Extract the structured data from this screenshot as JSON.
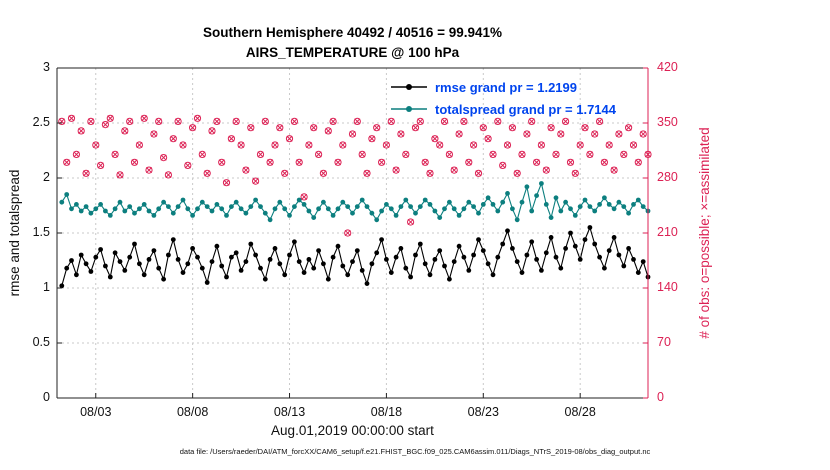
{
  "figure": {
    "title_line1": "Southern Hemisphere 40492 / 40516 = 99.941%",
    "title_line2": "AIRS_TEMPERATURE @ 100 hPa",
    "xlabel": "Aug.01,2019 00:00:00 start",
    "ylabel_left": "rmse and totalspread",
    "ylabel_right": "# of obs: o=possible; ×=assimilated",
    "caption": "data file: /Users/raeder/DAI/ATM_forcXX/CAM6_setup/f.e21.FHIST_BGC.f09_025.CAM6assim.011/Diags_NTrS_2019-08/obs_diag_output.nc",
    "colors": {
      "rmse": "#000000",
      "totalspread": "#0c7f7f",
      "obs": "#dc2154",
      "legend_text": "#0044ee",
      "grid": "#c9c9c9",
      "axis": "#222222"
    }
  },
  "legend": {
    "entries": [
      {
        "label": "rmse grand pr = 1.2199",
        "series": "rmse"
      },
      {
        "label": "totalspread grand pr = 1.7144",
        "series": "totalspread"
      }
    ]
  },
  "chart_data": {
    "type": "line",
    "title": "Southern Hemisphere 40492 / 40516 = 99.941% | AIRS_TEMPERATURE @ 100 hPa",
    "grid": true,
    "legend_position": "upper-center",
    "x_axis": {
      "label": "Aug.01,2019 00:00:00 start",
      "tick_labels": [
        "08/03",
        "08/08",
        "08/13",
        "08/18",
        "08/23",
        "08/28"
      ],
      "tick_days": [
        2,
        7,
        12,
        17,
        22,
        27
      ],
      "range_days": [
        0,
        30.5
      ]
    },
    "y_left": {
      "label": "rmse and totalspread",
      "ticks": [
        0,
        0.5,
        1,
        1.5,
        2,
        2.5,
        3
      ],
      "range": [
        0,
        3
      ]
    },
    "y_right": {
      "label": "# of obs: o=possible; ×=assimilated",
      "ticks": [
        0,
        70,
        140,
        210,
        280,
        350,
        420
      ],
      "range": [
        0,
        420
      ]
    },
    "x_days": [
      0.25,
      0.5,
      0.75,
      1,
      1.25,
      1.5,
      1.75,
      2,
      2.25,
      2.5,
      2.75,
      3,
      3.25,
      3.5,
      3.75,
      4,
      4.25,
      4.5,
      4.75,
      5,
      5.25,
      5.5,
      5.75,
      6,
      6.25,
      6.5,
      6.75,
      7,
      7.25,
      7.5,
      7.75,
      8,
      8.25,
      8.5,
      8.75,
      9,
      9.25,
      9.5,
      9.75,
      10,
      10.25,
      10.5,
      10.75,
      11,
      11.25,
      11.5,
      11.75,
      12,
      12.25,
      12.5,
      12.75,
      13,
      13.25,
      13.5,
      13.75,
      14,
      14.25,
      14.5,
      14.75,
      15,
      15.25,
      15.5,
      15.75,
      16,
      16.25,
      16.5,
      16.75,
      17,
      17.25,
      17.5,
      17.75,
      18,
      18.25,
      18.5,
      18.75,
      19,
      19.25,
      19.5,
      19.75,
      20,
      20.25,
      20.5,
      20.75,
      21,
      21.25,
      21.5,
      21.75,
      22,
      22.25,
      22.5,
      22.75,
      23,
      23.25,
      23.5,
      23.75,
      24,
      24.25,
      24.5,
      24.75,
      25,
      25.25,
      25.5,
      25.75,
      26,
      26.25,
      26.5,
      26.75,
      27,
      27.25,
      27.5,
      27.75,
      28,
      28.25,
      28.5,
      28.75,
      29,
      29.25,
      29.5,
      29.75,
      30,
      30.25,
      30.5
    ],
    "series": [
      {
        "name": "rmse",
        "axis": "left",
        "marker": "filled-dot",
        "color_key": "rmse",
        "grand_prior_mean": 1.2199,
        "values": [
          1.02,
          1.18,
          1.25,
          1.12,
          1.3,
          1.22,
          1.15,
          1.28,
          1.35,
          1.2,
          1.1,
          1.32,
          1.24,
          1.16,
          1.28,
          1.4,
          1.22,
          1.12,
          1.26,
          1.34,
          1.18,
          1.08,
          1.3,
          1.44,
          1.26,
          1.14,
          1.22,
          1.36,
          1.28,
          1.18,
          1.05,
          1.24,
          1.38,
          1.2,
          1.1,
          1.28,
          1.32,
          1.16,
          1.24,
          1.4,
          1.3,
          1.18,
          1.08,
          1.26,
          1.36,
          1.22,
          1.12,
          1.3,
          1.42,
          1.24,
          1.14,
          1.26,
          1.18,
          1.34,
          1.22,
          1.08,
          1.28,
          1.38,
          1.2,
          1.12,
          1.24,
          1.34,
          1.16,
          1.04,
          1.22,
          1.32,
          1.44,
          1.26,
          1.14,
          1.28,
          1.36,
          1.18,
          1.1,
          1.3,
          1.4,
          1.22,
          1.12,
          1.26,
          1.34,
          1.2,
          1.08,
          1.24,
          1.38,
          1.28,
          1.16,
          1.3,
          1.44,
          1.34,
          1.22,
          1.12,
          1.28,
          1.4,
          1.52,
          1.36,
          1.24,
          1.14,
          1.3,
          1.42,
          1.26,
          1.16,
          1.32,
          1.46,
          1.28,
          1.18,
          1.36,
          1.5,
          1.38,
          1.26,
          1.44,
          1.55,
          1.4,
          1.28,
          1.18,
          1.34,
          1.46,
          1.3,
          1.2,
          1.36,
          1.26,
          1.14,
          1.24,
          1.1
        ]
      },
      {
        "name": "totalspread",
        "axis": "left",
        "marker": "filled-dot",
        "color_key": "totalspread",
        "grand_prior_mean": 1.7144,
        "values": [
          1.78,
          1.85,
          1.72,
          1.76,
          1.7,
          1.74,
          1.68,
          1.72,
          1.76,
          1.7,
          1.66,
          1.72,
          1.78,
          1.7,
          1.74,
          1.68,
          1.72,
          1.76,
          1.7,
          1.66,
          1.72,
          1.78,
          1.74,
          1.68,
          1.74,
          1.8,
          1.72,
          1.66,
          1.72,
          1.78,
          1.74,
          1.7,
          1.76,
          1.72,
          1.66,
          1.74,
          1.78,
          1.72,
          1.68,
          1.74,
          1.8,
          1.74,
          1.68,
          1.62,
          1.72,
          1.78,
          1.72,
          1.66,
          1.74,
          1.8,
          1.76,
          1.7,
          1.64,
          1.72,
          1.78,
          1.72,
          1.66,
          1.72,
          1.78,
          1.74,
          1.68,
          1.74,
          1.8,
          1.74,
          1.68,
          1.62,
          1.7,
          1.76,
          1.72,
          1.66,
          1.74,
          1.8,
          1.74,
          1.68,
          1.74,
          1.8,
          1.76,
          1.7,
          1.64,
          1.72,
          1.78,
          1.72,
          1.66,
          1.72,
          1.78,
          1.74,
          1.68,
          1.76,
          1.82,
          1.76,
          1.7,
          1.78,
          1.86,
          1.72,
          1.62,
          1.78,
          1.92,
          1.7,
          1.84,
          1.95,
          1.76,
          1.64,
          1.82,
          1.7,
          1.78,
          1.72,
          1.66,
          1.74,
          1.8,
          1.74,
          1.7,
          1.76,
          1.82,
          1.76,
          1.72,
          1.78,
          1.74,
          1.68,
          1.76,
          1.8,
          1.74,
          1.7
        ]
      },
      {
        "name": "obs_possible",
        "axis": "right",
        "marker": "circle",
        "color_key": "obs",
        "total": 40516,
        "values": [
          352,
          300,
          356,
          310,
          340,
          286,
          352,
          322,
          296,
          348,
          356,
          310,
          284,
          340,
          352,
          300,
          322,
          356,
          290,
          336,
          352,
          306,
          284,
          330,
          352,
          322,
          296,
          344,
          356,
          310,
          286,
          340,
          352,
          300,
          274,
          330,
          352,
          322,
          290,
          344,
          276,
          310,
          352,
          300,
          322,
          344,
          286,
          330,
          352,
          300,
          256,
          322,
          344,
          310,
          286,
          340,
          352,
          300,
          322,
          210,
          336,
          352,
          310,
          286,
          330,
          344,
          300,
          322,
          352,
          290,
          336,
          310,
          224,
          344,
          352,
          300,
          286,
          330,
          322,
          352,
          310,
          290,
          336,
          352,
          300,
          322,
          286,
          344,
          330,
          310,
          352,
          296,
          322,
          344,
          286,
          310,
          336,
          352,
          300,
          322,
          290,
          344,
          310,
          336,
          352,
          300,
          286,
          322,
          344,
          310,
          336,
          352,
          300,
          322,
          290,
          336,
          310,
          344,
          322,
          300,
          336,
          310
        ]
      },
      {
        "name": "obs_assimilated",
        "axis": "right",
        "marker": "x",
        "color_key": "obs",
        "total": 40492,
        "values": [
          352,
          300,
          356,
          310,
          340,
          286,
          352,
          322,
          296,
          348,
          356,
          310,
          284,
          340,
          352,
          300,
          322,
          356,
          290,
          336,
          352,
          306,
          284,
          330,
          352,
          322,
          296,
          344,
          356,
          310,
          286,
          340,
          352,
          300,
          274,
          330,
          352,
          322,
          290,
          344,
          276,
          310,
          352,
          300,
          322,
          344,
          286,
          330,
          352,
          300,
          256,
          322,
          344,
          310,
          286,
          340,
          352,
          300,
          322,
          210,
          336,
          352,
          310,
          286,
          330,
          344,
          300,
          322,
          352,
          290,
          336,
          310,
          224,
          344,
          352,
          300,
          286,
          330,
          322,
          352,
          310,
          290,
          336,
          352,
          300,
          322,
          286,
          344,
          330,
          310,
          352,
          296,
          322,
          344,
          286,
          310,
          336,
          352,
          300,
          322,
          290,
          344,
          310,
          336,
          352,
          300,
          286,
          322,
          344,
          310,
          336,
          352,
          300,
          322,
          290,
          336,
          310,
          344,
          322,
          300,
          336,
          310
        ]
      }
    ]
  }
}
